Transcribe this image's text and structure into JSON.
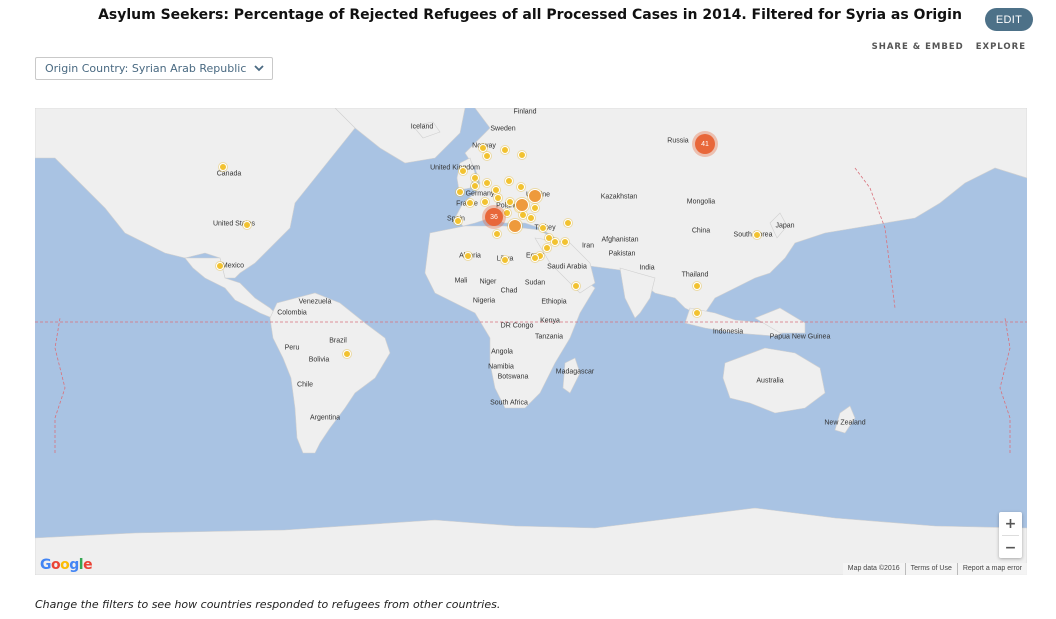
{
  "header": {
    "title": "Asylum Seekers: Percentage of Rejected Refugees of all Processed Cases in 2014. Filtered for Syria as Origin",
    "edit_label": "EDIT",
    "share_label": "SHARE & EMBED",
    "explore_label": "EXPLORE"
  },
  "filter": {
    "selected": "Origin Country: Syrian Arab Republic",
    "icon": "chevron-down-icon"
  },
  "map": {
    "colors": {
      "water": "#a9c3e3",
      "land": "#efefef",
      "marker": "#f2c230",
      "marker_mid": "#ee9a3c",
      "cluster": "#e8673a"
    },
    "labels": [
      {
        "text": "Finland"
      },
      {
        "text": "Sweden"
      },
      {
        "text": "Iceland"
      },
      {
        "text": "Norway"
      },
      {
        "text": "Russia"
      },
      {
        "text": "United Kingdom"
      },
      {
        "text": "Canada"
      },
      {
        "text": "Germany"
      },
      {
        "text": "Poland"
      },
      {
        "text": "Ukraine"
      },
      {
        "text": "France"
      },
      {
        "text": "Kazakhstan"
      },
      {
        "text": "Mongolia"
      },
      {
        "text": "Spain"
      },
      {
        "text": "Turkey"
      },
      {
        "text": "United States"
      },
      {
        "text": "China"
      },
      {
        "text": "South Korea"
      },
      {
        "text": "Japan"
      },
      {
        "text": "Afghanistan"
      },
      {
        "text": "Iran"
      },
      {
        "text": "Pakistan"
      },
      {
        "text": "Algeria"
      },
      {
        "text": "Libya"
      },
      {
        "text": "Egypt"
      },
      {
        "text": "Saudi Arabia"
      },
      {
        "text": "India"
      },
      {
        "text": "Mexico"
      },
      {
        "text": "Thailand"
      },
      {
        "text": "Mali"
      },
      {
        "text": "Niger"
      },
      {
        "text": "Chad"
      },
      {
        "text": "Sudan"
      },
      {
        "text": "Venezuela"
      },
      {
        "text": "Nigeria"
      },
      {
        "text": "Ethiopia"
      },
      {
        "text": "Colombia"
      },
      {
        "text": "Kenya"
      },
      {
        "text": "DR Congo"
      },
      {
        "text": "Indonesia"
      },
      {
        "text": "Papua New Guinea"
      },
      {
        "text": "Tanzania"
      },
      {
        "text": "Peru"
      },
      {
        "text": "Brazil"
      },
      {
        "text": "Bolivia"
      },
      {
        "text": "Angola"
      },
      {
        "text": "Namibia"
      },
      {
        "text": "Madagascar"
      },
      {
        "text": "Botswana"
      },
      {
        "text": "Australia"
      },
      {
        "text": "Chile"
      },
      {
        "text": "South Africa"
      },
      {
        "text": "Argentina"
      },
      {
        "text": "New Zealand"
      }
    ],
    "clusters": [
      {
        "count": "41"
      },
      {
        "count": "36"
      }
    ],
    "zoom_in": "+",
    "zoom_out": "−",
    "google_logo": "Google",
    "attribution": {
      "map_data": "Map data ©2016",
      "terms": "Terms of Use",
      "report": "Report a map error"
    }
  },
  "footnote": "Change the filters to see how countries responded to refugees from other countries."
}
